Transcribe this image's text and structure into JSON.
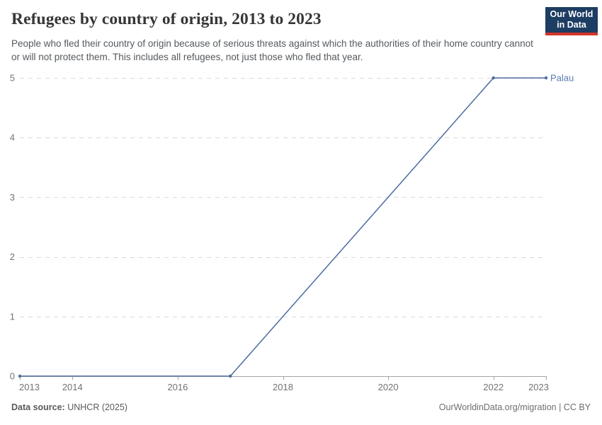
{
  "header": {
    "title": "Refugees by country of origin, 2013 to 2023",
    "subtitle": "People who fled their country of origin because of serious threats against which the authorities of their home country cannot or will not protect them. This includes all refugees, not just those who fled that year.",
    "logo": {
      "line1": "Our World",
      "line2": "in Data",
      "bg": "#1d3d63",
      "accent": "#d2352c"
    }
  },
  "chart_data": {
    "type": "line",
    "title": "Refugees by country of origin, 2013 to 2023",
    "x": [
      2013,
      2014,
      2015,
      2016,
      2017,
      2018,
      2019,
      2020,
      2021,
      2022,
      2023
    ],
    "series": [
      {
        "name": "Palau",
        "color": "#4d6b9f",
        "label_color": "#5b7cb0",
        "values": [
          0,
          0,
          0,
          0,
          0,
          1,
          2,
          3,
          4,
          5,
          5
        ]
      }
    ],
    "xlim": [
      2013,
      2023
    ],
    "ylim": [
      0,
      5
    ],
    "x_ticks": [
      2013,
      2014,
      2016,
      2018,
      2020,
      2022,
      2023
    ],
    "y_ticks": [
      0,
      1,
      2,
      3,
      4,
      5
    ],
    "grid": "horizontal-dashed",
    "legend_position": "end-of-line",
    "marker_years": [
      2013,
      2017,
      2022,
      2023
    ],
    "xlabel": "",
    "ylabel": ""
  },
  "footer": {
    "source_label": "Data source:",
    "source_value": " UNHCR (2025)",
    "credit": "OurWorldinData.org/migration | CC BY"
  },
  "colors": {
    "grid": "#dadada",
    "axis": "#a5a5a5",
    "tick_label": "#737373",
    "background": "#ffffff"
  }
}
